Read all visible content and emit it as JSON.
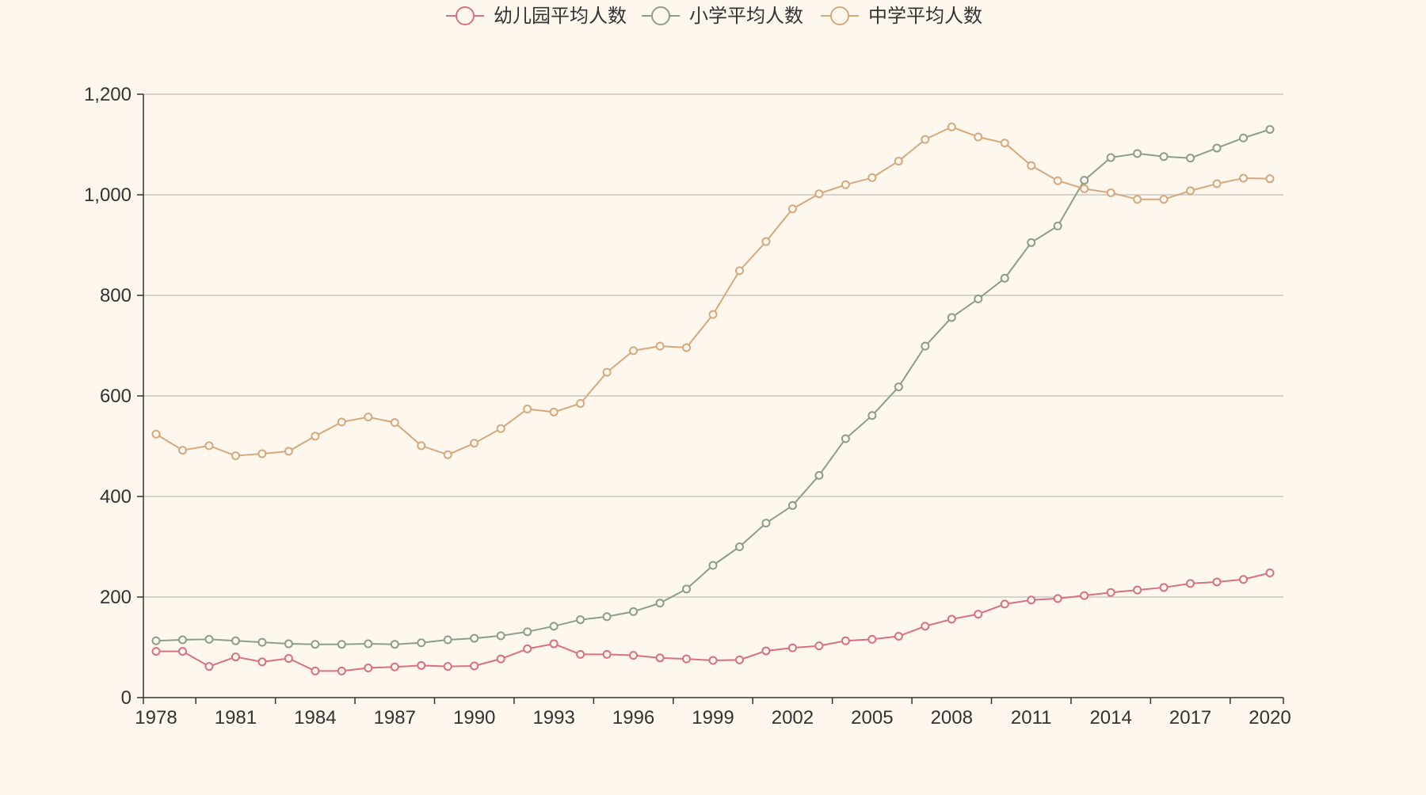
{
  "colors": {
    "background": "#fdf7ee",
    "kindergarten": "#d9707f",
    "primary": "#8c9e8b",
    "middle": "#d6a87c",
    "grid": "#c8c8c0",
    "axis": "#333333",
    "text": "#333333"
  },
  "chart_data": {
    "type": "line",
    "title": "",
    "xlabel": "",
    "ylabel": "",
    "ylim": [
      0,
      1200
    ],
    "y_ticks": [
      0,
      200,
      400,
      600,
      800,
      1000,
      1200
    ],
    "y_tick_labels": [
      "0",
      "200",
      "400",
      "600",
      "800",
      "1,000",
      "1,200"
    ],
    "x": [
      1978,
      1979,
      1980,
      1981,
      1982,
      1983,
      1984,
      1985,
      1986,
      1987,
      1988,
      1989,
      1990,
      1991,
      1992,
      1993,
      1994,
      1995,
      1996,
      1997,
      1998,
      1999,
      2000,
      2001,
      2002,
      2003,
      2004,
      2005,
      2006,
      2007,
      2008,
      2009,
      2010,
      2011,
      2012,
      2013,
      2014,
      2015,
      2016,
      2017,
      2018,
      2019,
      2020
    ],
    "x_ticks": [
      1978,
      1981,
      1984,
      1987,
      1990,
      1993,
      1996,
      1999,
      2002,
      2005,
      2008,
      2011,
      2014,
      2017,
      2020
    ],
    "grid": true,
    "legend_position": "top-center",
    "series": [
      {
        "name": "幼儿园平均人数",
        "color_key": "kindergarten",
        "values": [
          92,
          92,
          62,
          81,
          71,
          78,
          53,
          53,
          59,
          61,
          64,
          62,
          63,
          77,
          97,
          107,
          86,
          86,
          84,
          79,
          77,
          74,
          75,
          93,
          99,
          103,
          113,
          116,
          122,
          142,
          156,
          166,
          186,
          194,
          197,
          203,
          209,
          214,
          219,
          227,
          230,
          235,
          248
        ]
      },
      {
        "name": "小学平均人数",
        "color_key": "primary",
        "values": [
          113,
          115,
          116,
          113,
          110,
          107,
          106,
          106,
          107,
          106,
          109,
          115,
          118,
          123,
          131,
          142,
          155,
          161,
          171,
          188,
          216,
          263,
          300,
          347,
          382,
          442,
          515,
          561,
          618,
          699,
          756,
          793,
          834,
          905,
          938,
          1029,
          1074,
          1082,
          1076,
          1073,
          1093,
          1113,
          1130
        ]
      },
      {
        "name": "中学平均人数",
        "color_key": "middle",
        "values": [
          524,
          492,
          501,
          481,
          485,
          490,
          520,
          548,
          558,
          547,
          501,
          483,
          506,
          535,
          574,
          568,
          585,
          647,
          690,
          699,
          696,
          762,
          849,
          907,
          972,
          1002,
          1020,
          1034,
          1067,
          1110,
          1135,
          1115,
          1103,
          1058,
          1028,
          1012,
          1004,
          991,
          991,
          1008,
          1022,
          1033,
          1032
        ]
      }
    ]
  }
}
